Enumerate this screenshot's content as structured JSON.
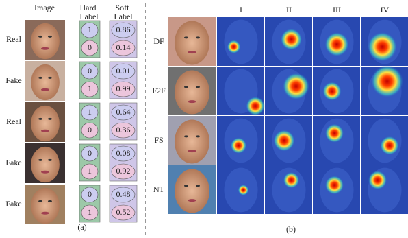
{
  "panel_a": {
    "headers": [
      "Image",
      "Hard Label",
      "Soft Label"
    ],
    "rows": [
      {
        "label": "Real",
        "hard": [
          "1",
          "0"
        ],
        "soft": [
          "0.86",
          "0.14"
        ]
      },
      {
        "label": "Fake",
        "hard": [
          "0",
          "1"
        ],
        "soft": [
          "0.01",
          "0.99"
        ]
      },
      {
        "label": "Real",
        "hard": [
          "1",
          "0"
        ],
        "soft": [
          "0.64",
          "0.36"
        ]
      },
      {
        "label": "Fake",
        "hard": [
          "0",
          "1"
        ],
        "soft": [
          "0.08",
          "0.92"
        ]
      },
      {
        "label": "Fake",
        "hard": [
          "0",
          "1"
        ],
        "soft": [
          "0.48",
          "0.52"
        ]
      }
    ],
    "caption": "(a)"
  },
  "panel_b": {
    "columns": [
      "I",
      "II",
      "III",
      "IV"
    ],
    "rows": [
      "DF",
      "F2F",
      "FS",
      "NT"
    ],
    "caption": "(b)"
  }
}
